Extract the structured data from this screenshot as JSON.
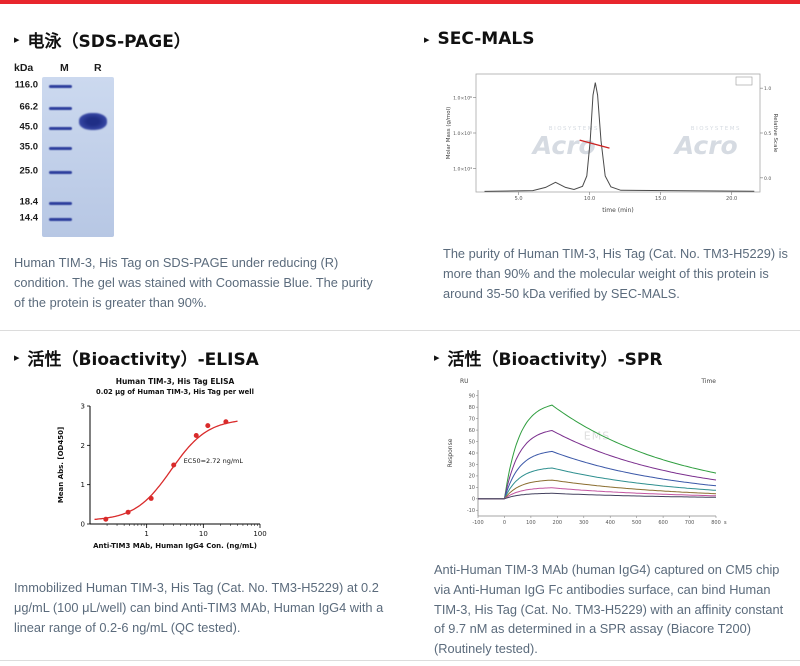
{
  "page": {
    "accent_color": "#e8262d",
    "divider_color": "#dcdcdc",
    "bullet_icon": "▸"
  },
  "sections": {
    "sds_page": {
      "title": "电泳（SDS-PAGE）",
      "caption": "Human TIM-3, His Tag on SDS-PAGE under reducing (R) condition. The gel was stained with Coomassie Blue. The purity of the protein is greater than 90%.",
      "gel": {
        "unit_label": "kDa",
        "lane_labels": [
          "M",
          "R"
        ],
        "markers": [
          {
            "kda": "116.0",
            "pos_pct": 5
          },
          {
            "kda": "66.2",
            "pos_pct": 18.5
          },
          {
            "kda": "45.0",
            "pos_pct": 31
          },
          {
            "kda": "35.0",
            "pos_pct": 44
          },
          {
            "kda": "25.0",
            "pos_pct": 59
          },
          {
            "kda": "18.4",
            "pos_pct": 78
          },
          {
            "kda": "14.4",
            "pos_pct": 88
          }
        ],
        "sample_band": {
          "pos_pct": 22.5,
          "height_pct": 10.5
        },
        "band_color": "#2e3f9d",
        "gel_bg_from": "#ccd9ef",
        "gel_bg_to": "#b7c7e4"
      }
    },
    "sec_mals": {
      "title": "SEC-MALS",
      "caption": "The purity of Human TIM-3, His Tag (Cat. No. TM3-H5229) is more than 90% and the molecular weight of this protein is around 35-50 kDa verified by SEC-MALS.",
      "chart_data": {
        "type": "line",
        "xlabel": "time (min)",
        "ylabel_left": "Molar Mass (g/mol)",
        "ylabel_right": "Relative Scale",
        "x_range": [
          2,
          22
        ],
        "xticks": [
          "5.0",
          "10.0",
          "15.0",
          "20.0"
        ],
        "yticks_left": [
          "1.0×10⁶",
          "1.0×10⁵",
          "1.0×10⁴"
        ],
        "yticks_right": [
          "1.0",
          "0.5",
          "0.0"
        ],
        "main_peak_time_min": 10.4,
        "minor_bump_time_min": 7.6,
        "mass_trace_span_min": [
          9.3,
          11.4
        ],
        "mass_trace_level_frac": 0.44,
        "signal_color": "#4a4a4a",
        "mass_color": "#cc2222",
        "watermark": "Acro",
        "watermark_small": "BIOSYSTEMS"
      }
    },
    "elisa": {
      "title": "活性（Bioactivity）-ELISA",
      "caption": "Immobilized Human TIM-3, His Tag (Cat. No. TM3-H5229) at 0.2 μg/mL (100 μL/well) can bind Anti-TIM3 MAb, Human IgG4 with a linear range of 0.2-6 ng/mL (QC tested).",
      "chart_data": {
        "type": "scatter",
        "title": "Human TIM-3, His Tag ELISA",
        "subtitle": "0.02 μg of Human TIM-3, His Tag per well",
        "xlabel": "Anti-TIM3 MAb, Human IgG4 Con. (ng/mL)",
        "ylabel": "Mean Abs. [OD450]",
        "xscale": "log",
        "xlim": [
          0.1,
          100
        ],
        "ylim": [
          0,
          3
        ],
        "xticks": [
          1,
          10,
          100
        ],
        "yticks": [
          0,
          1,
          2,
          3
        ],
        "points": [
          [
            0.19,
            0.12
          ],
          [
            0.47,
            0.3
          ],
          [
            1.2,
            0.65
          ],
          [
            3,
            1.5
          ],
          [
            7.5,
            2.25
          ],
          [
            12,
            2.5
          ],
          [
            25,
            2.6
          ]
        ],
        "fit": {
          "bottom": 0.08,
          "top": 2.68,
          "ec50": 2.72,
          "hill": 1.35
        },
        "annotation": "EC50=2.72 ng/mL",
        "color": "#d92b2b"
      }
    },
    "spr": {
      "title": "活性（Bioactivity）-SPR",
      "caption": "Anti-Human TIM-3 MAb (human IgG4) captured on CM5 chip via Anti-Human IgG Fc antibodies surface, can bind Human TIM-3, His Tag (Cat. No. TM3-H5229) with an affinity constant of 9.7 nM as determined in a SPR assay (Biacore T200) (Routinely tested).",
      "chart_data": {
        "type": "line",
        "y_unit": "RU",
        "ylabel": "Response",
        "x_title": "Time",
        "x_unit": "s",
        "xlim": [
          -100,
          800
        ],
        "ylim": [
          -15,
          95
        ],
        "xticks": [
          -100,
          0,
          100,
          200,
          300,
          400,
          500,
          600,
          700,
          800
        ],
        "yticks": [
          -10,
          0,
          10,
          20,
          30,
          40,
          50,
          60,
          70,
          80,
          90
        ],
        "association_end_s": 180,
        "series": [
          {
            "peak_ru": 85,
            "color": "#2f9e3f"
          },
          {
            "peak_ru": 62,
            "color": "#7b2f8e"
          },
          {
            "peak_ru": 43,
            "color": "#3a57a8"
          },
          {
            "peak_ru": 28,
            "color": "#2e8f8f"
          },
          {
            "peak_ru": 17,
            "color": "#8a6d2f"
          },
          {
            "peak_ru": 10,
            "color": "#c254a0"
          },
          {
            "peak_ru": 5,
            "color": "#44425f"
          }
        ],
        "watermark": "EMS"
      }
    }
  }
}
